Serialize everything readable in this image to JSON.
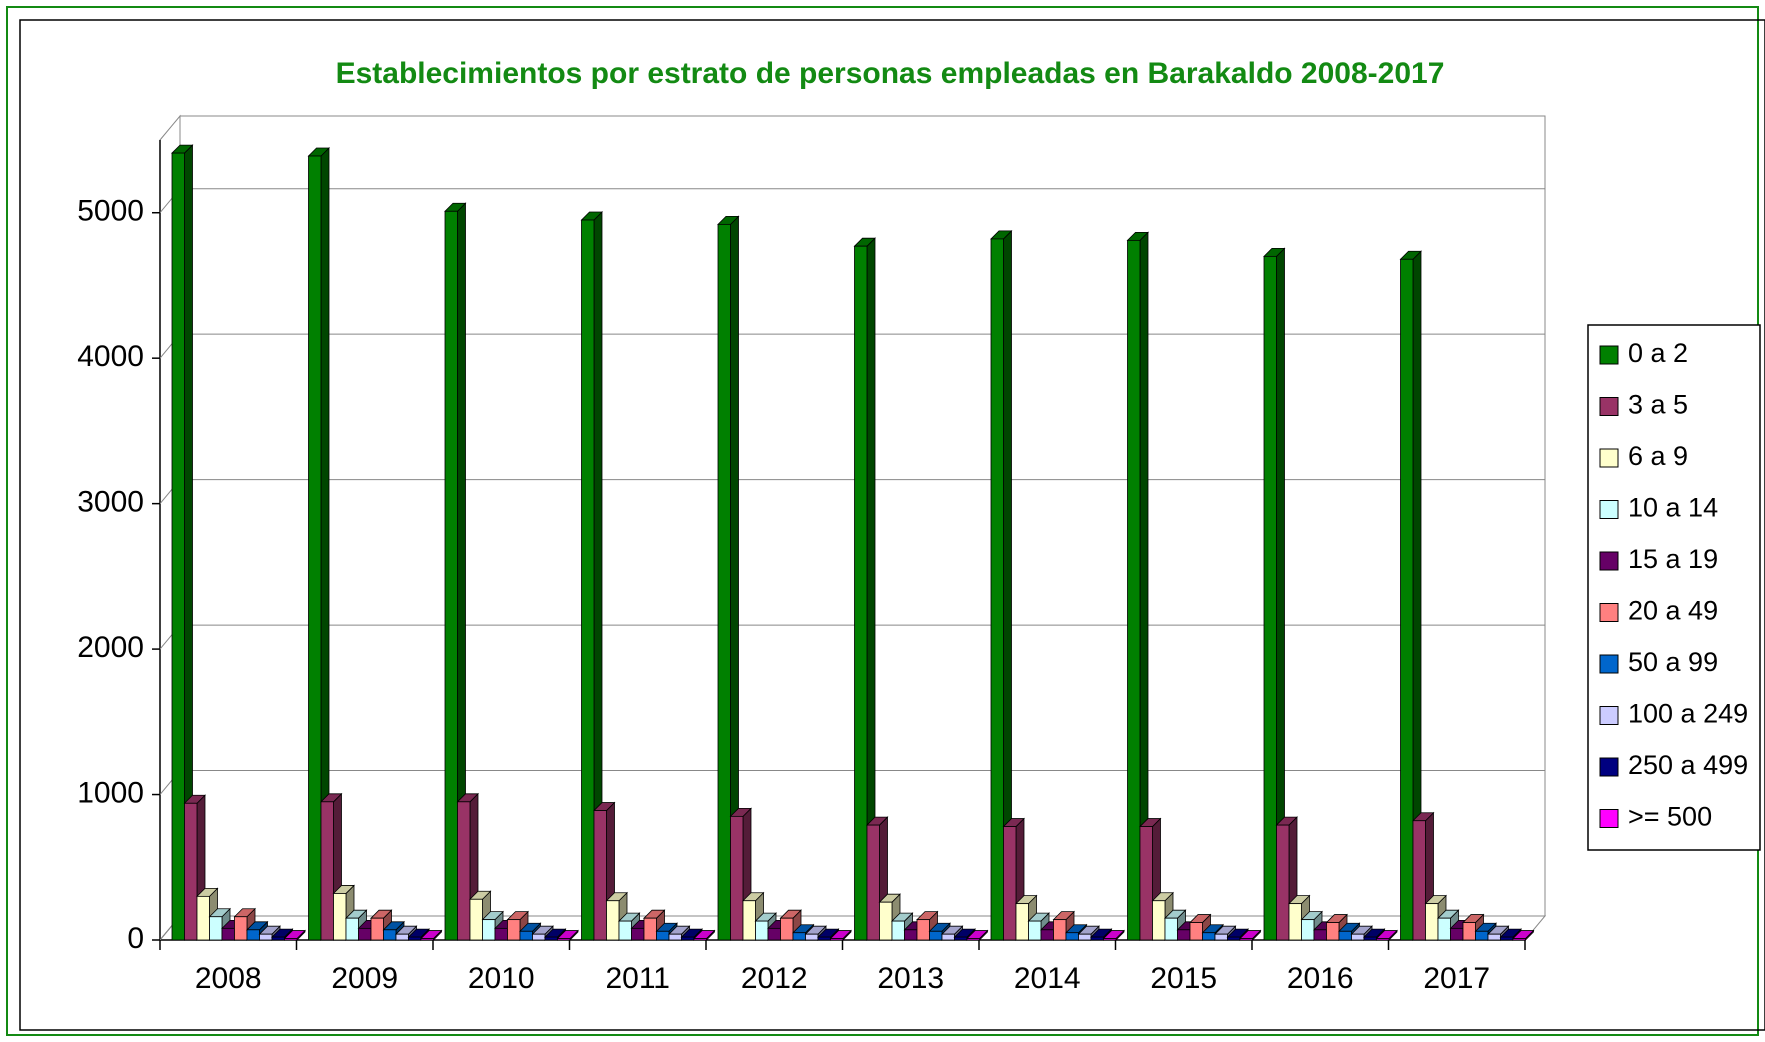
{
  "chart_data": {
    "type": "bar3d",
    "title": "Establecimientos por estrato de personas empleadas en Barakaldo 2008-2017",
    "categories": [
      "2008",
      "2009",
      "2010",
      "2011",
      "2012",
      "2013",
      "2014",
      "2015",
      "2016",
      "2017"
    ],
    "series": [
      {
        "name": "0 a 2",
        "color": "#008000",
        "values": [
          5410,
          5390,
          5010,
          4950,
          4920,
          4770,
          4820,
          4810,
          4700,
          4680
        ]
      },
      {
        "name": "3 a 5",
        "color": "#993366",
        "values": [
          940,
          950,
          950,
          890,
          850,
          790,
          780,
          780,
          790,
          820
        ]
      },
      {
        "name": "6 a 9",
        "color": "#ffffcc",
        "values": [
          300,
          320,
          280,
          270,
          270,
          260,
          250,
          270,
          250,
          250
        ]
      },
      {
        "name": "10 a 14",
        "color": "#ccffff",
        "values": [
          160,
          150,
          140,
          130,
          130,
          130,
          130,
          150,
          140,
          150
        ]
      },
      {
        "name": "15 a 19",
        "color": "#660066",
        "values": [
          80,
          80,
          80,
          80,
          80,
          70,
          70,
          70,
          70,
          80
        ]
      },
      {
        "name": "20 a 49",
        "color": "#ff8080",
        "values": [
          160,
          150,
          140,
          150,
          150,
          140,
          140,
          120,
          120,
          120
        ]
      },
      {
        "name": "50 a 99",
        "color": "#0066cc",
        "values": [
          70,
          70,
          60,
          60,
          50,
          60,
          50,
          50,
          60,
          60
        ]
      },
      {
        "name": "100 a 249",
        "color": "#ccccff",
        "values": [
          40,
          40,
          40,
          40,
          40,
          40,
          40,
          40,
          40,
          40
        ]
      },
      {
        "name": "250 a 499",
        "color": "#000080",
        "values": [
          20,
          20,
          20,
          20,
          20,
          20,
          20,
          20,
          20,
          20
        ]
      },
      {
        "name": ">= 500",
        "color": "#ff00ff",
        "values": [
          10,
          10,
          10,
          10,
          10,
          10,
          10,
          10,
          10,
          10
        ]
      }
    ],
    "ylim": [
      0,
      5500
    ],
    "yticks": [
      0,
      1000,
      2000,
      3000,
      4000,
      5000
    ],
    "grid": true,
    "legend": "right"
  }
}
